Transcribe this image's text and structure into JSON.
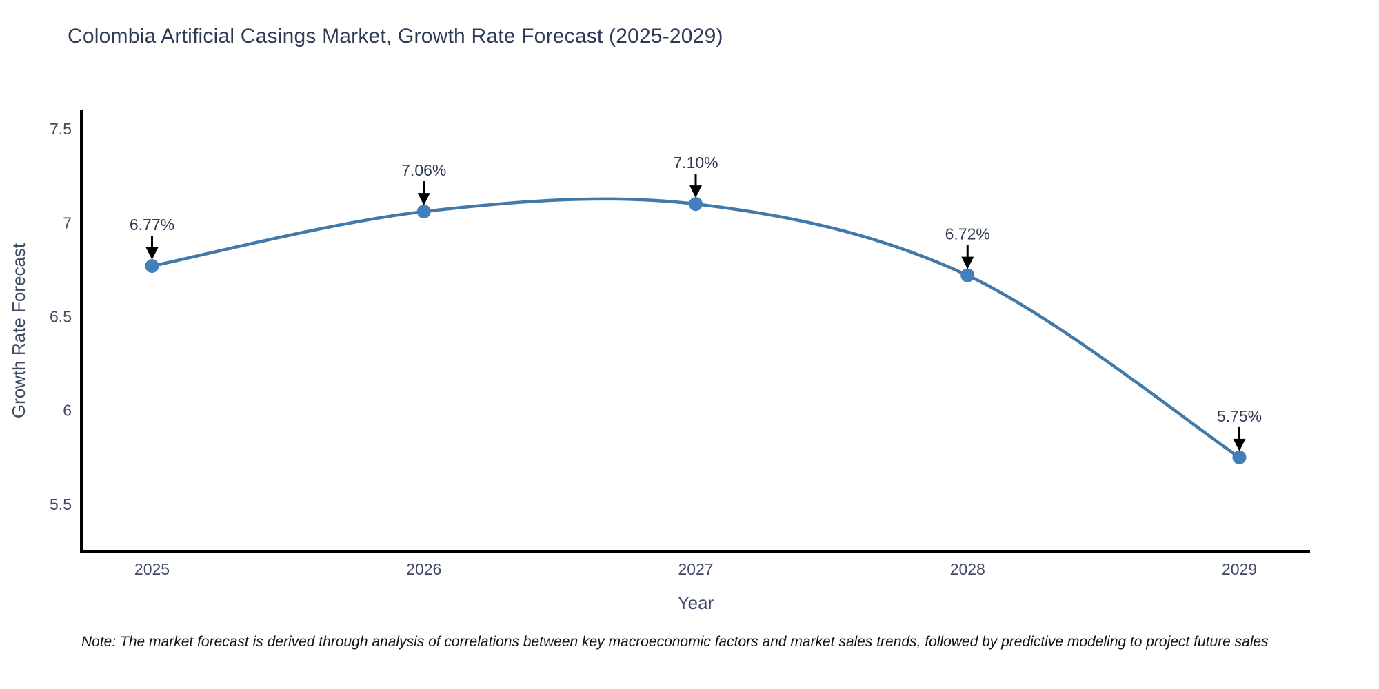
{
  "title": "Colombia Artificial Casings Market, Growth Rate Forecast (2025-2029)",
  "note": "Note: The market forecast is derived through analysis of correlations between key macroeconomic factors and market sales trends, followed by predictive modeling to project future sales",
  "chart_data": {
    "type": "line",
    "title": "Colombia Artificial Casings Market, Growth Rate Forecast (2025-2029)",
    "categories": [
      "2025",
      "2026",
      "2027",
      "2028",
      "2029"
    ],
    "x": [
      2025,
      2026,
      2027,
      2028,
      2029
    ],
    "values": [
      6.77,
      7.06,
      7.1,
      6.72,
      5.75
    ],
    "point_labels": [
      "6.77%",
      "7.06%",
      "7.10%",
      "6.72%",
      "5.75%"
    ],
    "xlabel": "Year",
    "ylabel": "Growth Rate Forecast",
    "y_ticks": [
      "7.5",
      "7",
      "6.5",
      "6",
      "5.5"
    ],
    "y_tick_values": [
      7.5,
      7.0,
      6.5,
      6.0,
      5.5
    ],
    "xlim": [
      2024.74,
      2029.26
    ],
    "ylim": [
      5.25,
      7.6
    ],
    "line_shape": "spline",
    "grid": false,
    "legend": false,
    "annotation_style": "down-arrow",
    "colors": {
      "line": "#4279a7",
      "marker": "#3f80bd",
      "arrow": "#000000",
      "axis_line": "#000000",
      "tick_text": "#3e4a63",
      "axis_title_text": "#3e4a63",
      "annotation_text": "#2f3a50",
      "title_text": "#2b3a55"
    }
  }
}
